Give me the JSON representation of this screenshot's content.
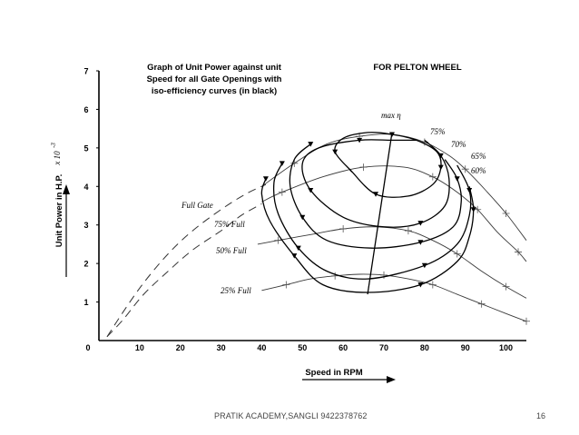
{
  "chart_data": {
    "type": "line",
    "title_lines": [
      "Graph of Unit Power against unit",
      "Speed for all Gate Openings with",
      "iso-efficiency curves (in black)"
    ],
    "subtitle": "FOR PELTON WHEEL",
    "xlabel": "Speed in RPM",
    "ylabel": "Unit Power in H.P.",
    "y_multiplier": "x 10",
    "y_multiplier_exp": "-3",
    "xlim": [
      0,
      105
    ],
    "ylim": [
      0,
      7
    ],
    "x_ticks": [
      "0",
      "10",
      "20",
      "30",
      "40",
      "50",
      "60",
      "70",
      "80",
      "90",
      "100"
    ],
    "y_ticks": [
      "1",
      "2",
      "3",
      "4",
      "5",
      "6",
      "7"
    ],
    "gate_series": [
      {
        "name": "Full Gate",
        "x": [
          40,
          48,
          56,
          64,
          72,
          80,
          86,
          90,
          95,
          100,
          105
        ],
        "y": [
          4.0,
          4.6,
          5.1,
          5.3,
          5.35,
          5.15,
          4.8,
          4.45,
          3.9,
          3.3,
          2.6
        ]
      },
      {
        "name": "75% Full",
        "x": [
          40,
          45,
          55,
          65,
          75,
          82,
          88,
          93,
          98,
          103,
          105
        ],
        "y": [
          3.6,
          3.85,
          4.25,
          4.5,
          4.5,
          4.25,
          3.85,
          3.4,
          2.8,
          2.3,
          2.05
        ]
      },
      {
        "name": "50% Full",
        "x": [
          39,
          44,
          52,
          60,
          68,
          76,
          82,
          88,
          94,
          100,
          105
        ],
        "y": [
          2.5,
          2.6,
          2.75,
          2.9,
          2.95,
          2.85,
          2.6,
          2.25,
          1.8,
          1.4,
          1.1
        ]
      },
      {
        "name": "25% Full",
        "x": [
          40,
          46,
          52,
          58,
          64,
          70,
          76,
          82,
          88,
          94,
          100,
          105
        ],
        "y": [
          1.3,
          1.45,
          1.6,
          1.68,
          1.72,
          1.7,
          1.6,
          1.45,
          1.2,
          0.95,
          0.7,
          0.5
        ]
      }
    ],
    "efficiency_series": [
      {
        "name": "max η",
        "x": [
          62,
          58,
          60,
          66,
          72,
          78,
          83,
          84,
          82,
          76,
          68,
          62
        ],
        "y": [
          4.4,
          4.9,
          5.25,
          5.4,
          5.35,
          5.2,
          4.9,
          4.5,
          4.05,
          3.75,
          3.8,
          4.4
        ],
        "closed": true
      },
      {
        "name": "75%",
        "x": [
          80,
          84,
          86,
          85,
          79,
          70,
          60,
          52,
          50,
          54,
          64,
          72,
          78
        ],
        "y": [
          5.2,
          4.8,
          4.2,
          3.5,
          3.05,
          2.95,
          3.2,
          3.9,
          4.6,
          5.0,
          5.2,
          5.2,
          5.2
        ]
      },
      {
        "name": "70%",
        "x": [
          85,
          88,
          89,
          87,
          79,
          67,
          56,
          50,
          47,
          48,
          52
        ],
        "y": [
          4.7,
          4.2,
          3.6,
          2.95,
          2.55,
          2.4,
          2.6,
          3.2,
          4.0,
          4.7,
          5.1
        ]
      },
      {
        "name": "65%",
        "x": [
          88,
          91,
          91,
          88,
          80,
          66,
          56,
          49,
          44,
          43,
          45
        ],
        "y": [
          4.55,
          3.9,
          3.25,
          2.5,
          1.95,
          1.6,
          1.8,
          2.4,
          3.3,
          4.1,
          4.6
        ]
      },
      {
        "name": "60%",
        "x": [
          91,
          92,
          91,
          88,
          79,
          66,
          55,
          48,
          42,
          40,
          41
        ],
        "y": [
          4.0,
          3.4,
          2.7,
          2.05,
          1.45,
          1.25,
          1.45,
          2.2,
          3.1,
          3.8,
          4.2
        ]
      }
    ],
    "max_eta_line": {
      "x": [
        66,
        72
      ],
      "y": [
        1.2,
        5.4
      ]
    },
    "dashed_extrapolation": [
      {
        "x": [
          2,
          6,
          11,
          17,
          23,
          30,
          36,
          41
        ],
        "y": [
          0.1,
          0.75,
          1.5,
          2.25,
          2.85,
          3.4,
          3.8,
          4.05
        ]
      },
      {
        "x": [
          2,
          6,
          11,
          17,
          23,
          30,
          35,
          40
        ],
        "y": [
          0.1,
          0.55,
          1.2,
          1.8,
          2.35,
          2.85,
          3.25,
          3.55
        ]
      }
    ],
    "grid": false,
    "legend": "inline labels"
  },
  "footer": {
    "text": "PRATIK ACADEMY,SANGLI 9422378762",
    "page": "16"
  },
  "colors": {
    "ink": "#000000",
    "curve": "#2a2a2a",
    "background": "#ffffff"
  }
}
